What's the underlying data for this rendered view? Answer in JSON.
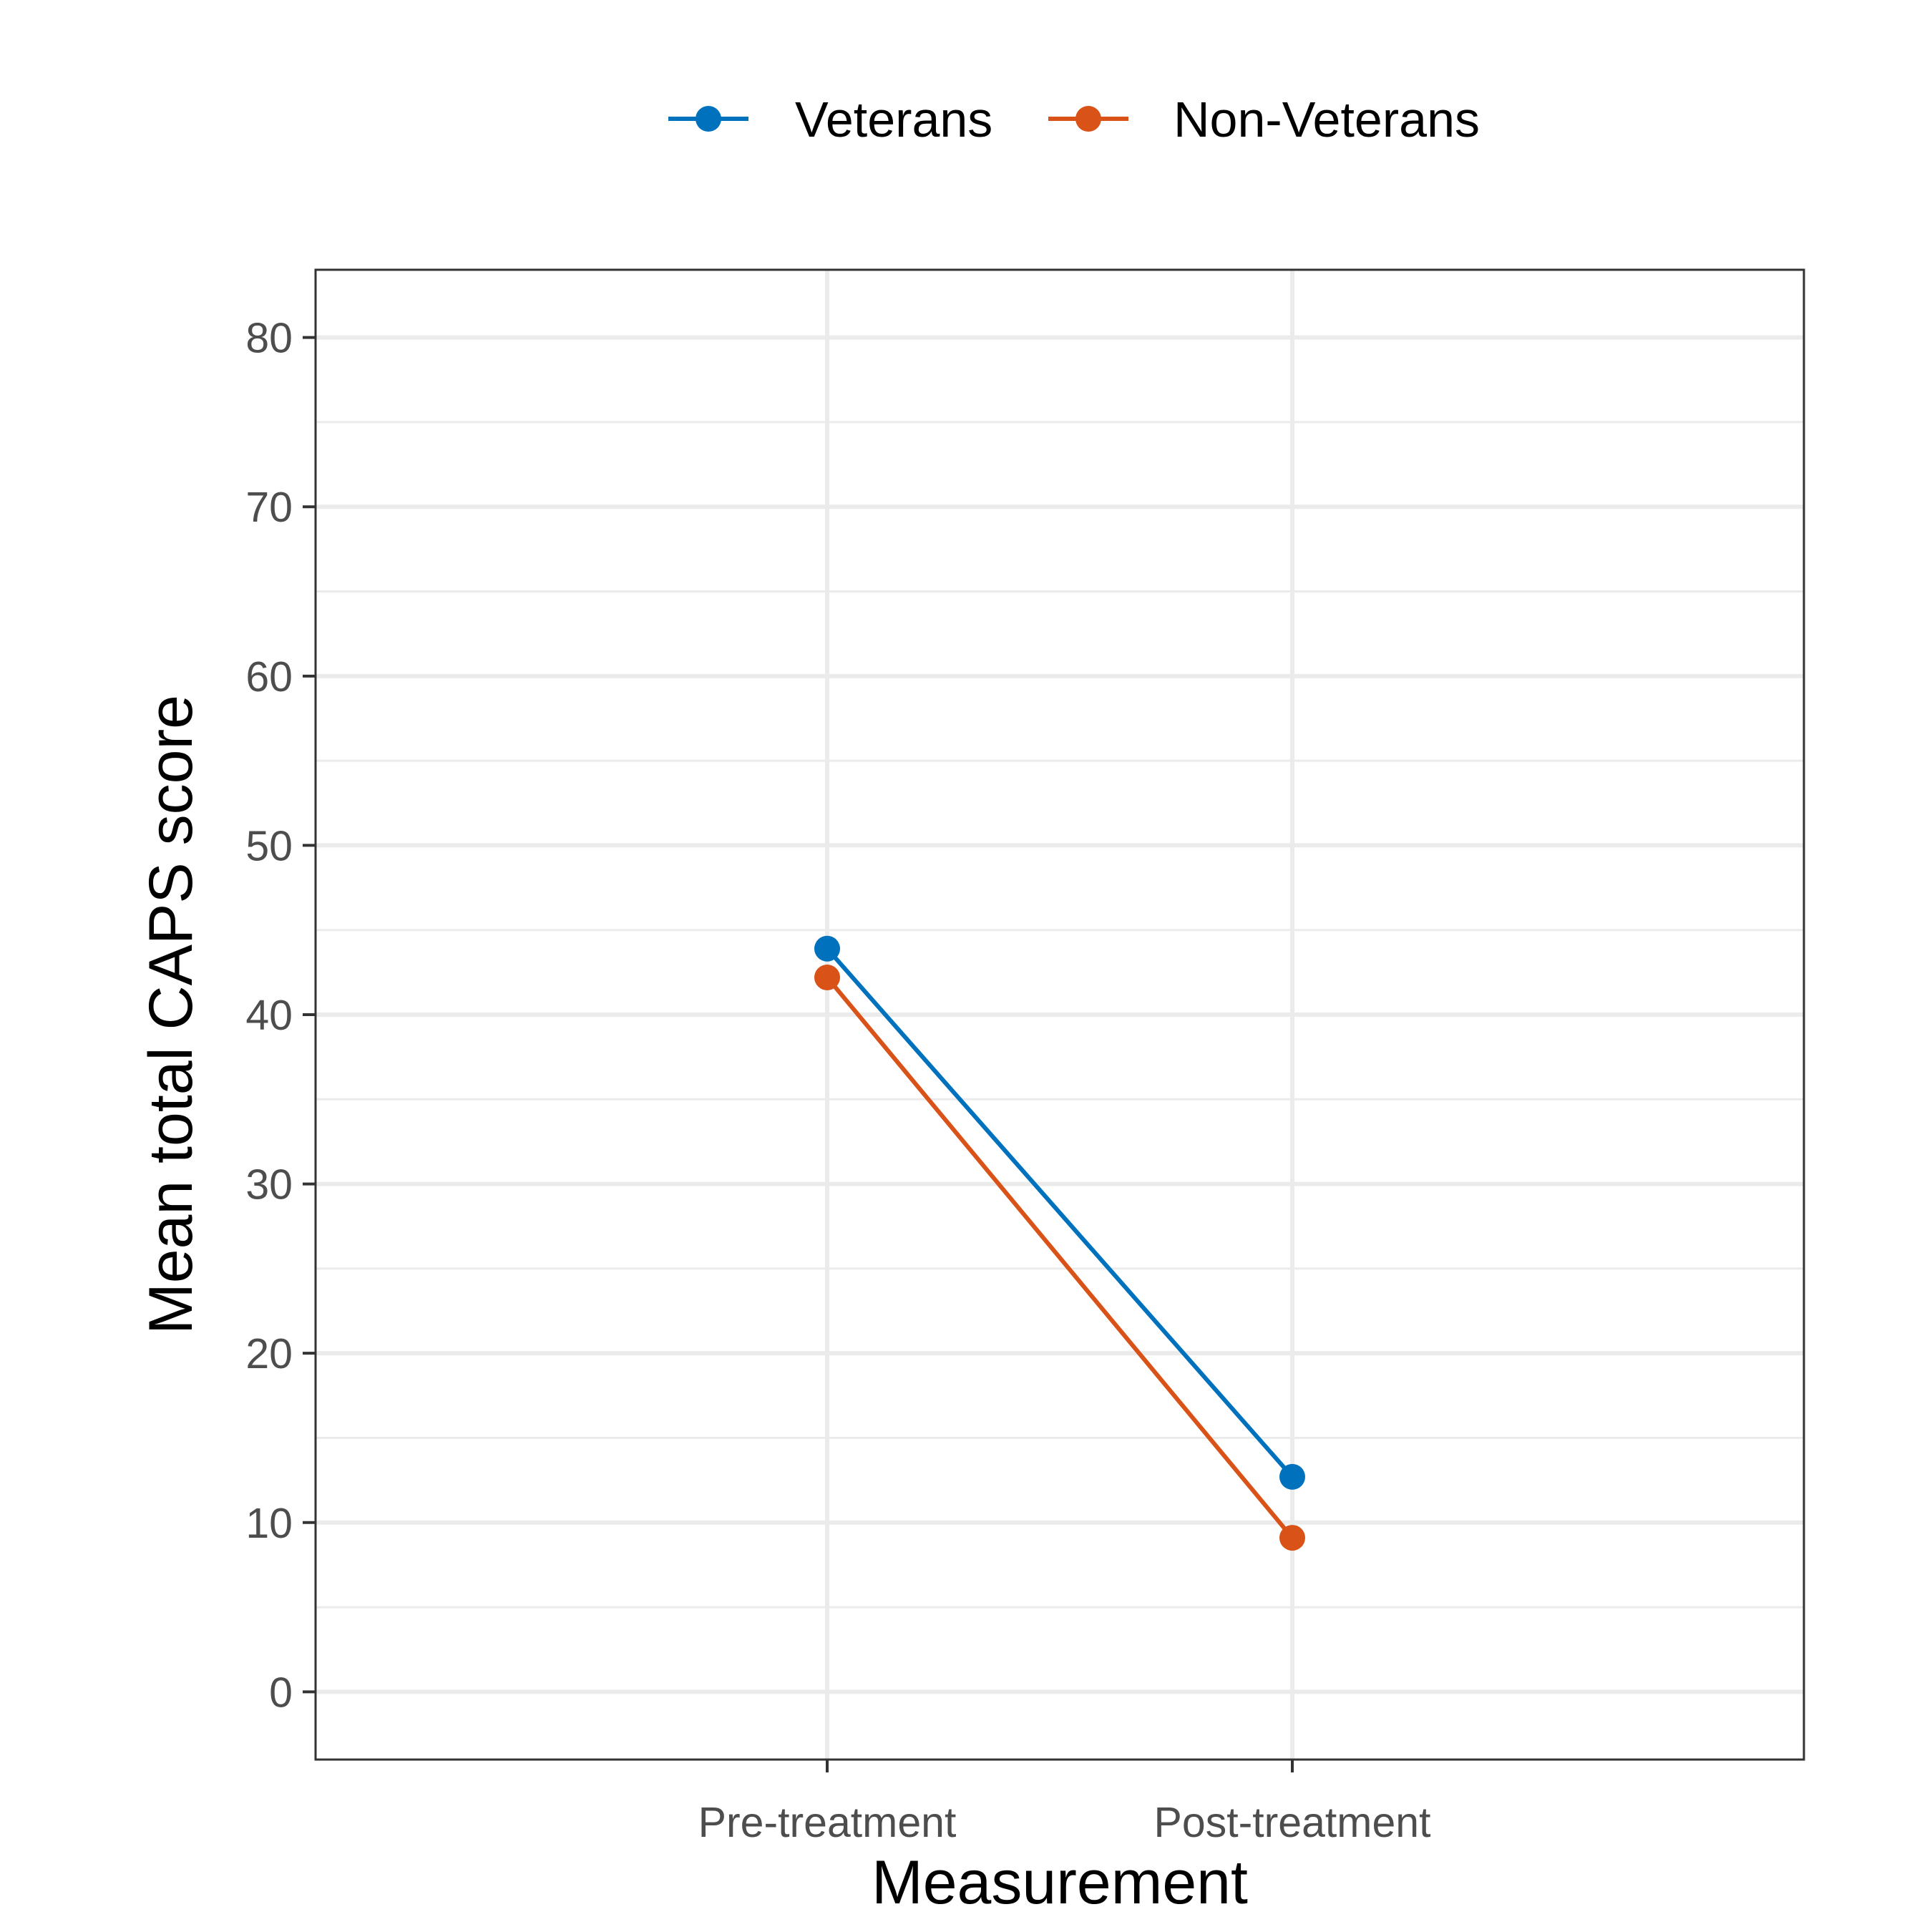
{
  "chart_data": {
    "type": "line",
    "xlabel": "Measurement",
    "ylabel": "Mean total CAPS score",
    "categories": [
      "Pre-treatment",
      "Post-treatment"
    ],
    "ylim": [
      -4,
      84
    ],
    "y_ticks": [
      0,
      10,
      20,
      30,
      40,
      50,
      60,
      70,
      80
    ],
    "y_tick_labels": [
      "0",
      "10",
      "20",
      "30",
      "40",
      "50",
      "60",
      "70",
      "80"
    ],
    "grid": true,
    "legend": "top",
    "series": [
      {
        "name": "Veterans",
        "color": "#0072BD",
        "values": [
          43.9,
          12.7
        ]
      },
      {
        "name": "Non-Veterans",
        "color": "#D95319",
        "values": [
          42.2,
          9.1
        ]
      }
    ]
  }
}
